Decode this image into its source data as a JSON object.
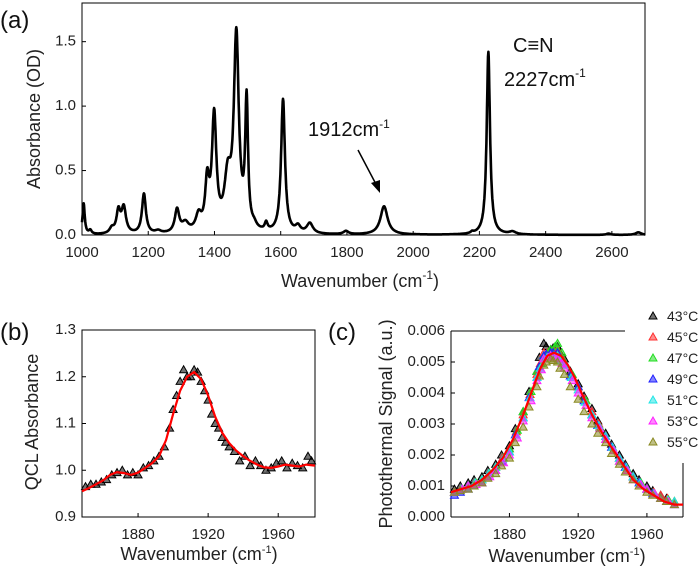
{
  "chart_data": [
    {
      "panel_label": "(a)",
      "type": "line",
      "xlabel": "Wavenumber (cm",
      "xlabel_sup": "-1",
      "xlabel_end": ")",
      "ylabel": "Absorbance (OD)",
      "xlim": [
        1000,
        2700
      ],
      "ylim": [
        0,
        1.8
      ],
      "xticks": [
        "1000",
        "1200",
        "1400",
        "1600",
        "1800",
        "2000",
        "2200",
        "2400",
        "2600"
      ],
      "yticks": [
        "0.0",
        "0.5",
        "1.0",
        "1.5"
      ],
      "grid": false,
      "color": "#000000",
      "peaks": [
        {
          "center": 1005,
          "height": 0.24,
          "width": 4
        },
        {
          "center": 1025,
          "height": 0.03,
          "width": 5
        },
        {
          "center": 1090,
          "height": 0.04,
          "width": 8
        },
        {
          "center": 1110,
          "height": 0.17,
          "width": 7
        },
        {
          "center": 1126,
          "height": 0.2,
          "width": 8
        },
        {
          "center": 1187,
          "height": 0.31,
          "width": 7
        },
        {
          "center": 1230,
          "height": 0.02,
          "width": 10
        },
        {
          "center": 1287,
          "height": 0.18,
          "width": 8
        },
        {
          "center": 1312,
          "height": 0.07,
          "width": 12
        },
        {
          "center": 1352,
          "height": 0.12,
          "width": 10
        },
        {
          "center": 1378,
          "height": 0.36,
          "width": 7
        },
        {
          "center": 1399,
          "height": 0.88,
          "width": 8
        },
        {
          "center": 1440,
          "height": 0.38,
          "width": 12
        },
        {
          "center": 1466,
          "height": 1.5,
          "width": 9
        },
        {
          "center": 1497,
          "height": 0.98,
          "width": 5
        },
        {
          "center": 1520,
          "height": 0.03,
          "width": 8
        },
        {
          "center": 1556,
          "height": 0.06,
          "width": 5
        },
        {
          "center": 1607,
          "height": 1.04,
          "width": 7
        },
        {
          "center": 1652,
          "height": 0.05,
          "width": 9
        },
        {
          "center": 1688,
          "height": 0.08,
          "width": 11
        },
        {
          "center": 1797,
          "height": 0.025,
          "width": 9
        },
        {
          "center": 1912,
          "height": 0.22,
          "width": 13
        },
        {
          "center": 2178,
          "height": 0.012,
          "width": 5
        },
        {
          "center": 2227,
          "height": 1.42,
          "width": 6
        },
        {
          "center": 2300,
          "height": 0.02,
          "width": 12
        },
        {
          "center": 2590,
          "height": 0.01,
          "width": 8
        },
        {
          "center": 2680,
          "height": 0.02,
          "width": 10
        }
      ],
      "annotations": [
        {
          "text": "1912cm",
          "sup": "-1",
          "arrow_to": [
            1912,
            0.28
          ]
        },
        {
          "text": "C≡N"
        },
        {
          "text": "2227cm",
          "sup": "-1"
        }
      ]
    },
    {
      "panel_label": "(b)",
      "type": "scatter",
      "xlabel": "Wavenumber (cm",
      "xlabel_sup": "-1",
      "xlabel_end": ")",
      "ylabel": "QCL Absorbance",
      "xlim": [
        1848,
        1981
      ],
      "ylim": [
        0.9,
        1.3
      ],
      "xticks": [
        "1880",
        "1920",
        "1960"
      ],
      "yticks": [
        "0.9",
        "1.0",
        "1.1",
        "1.2",
        "1.3"
      ],
      "grid": false,
      "data": {
        "color": "#000000",
        "marker": "triangle",
        "x": [
          1850,
          1853,
          1856,
          1859,
          1862,
          1865,
          1868,
          1871,
          1874,
          1877,
          1880,
          1883,
          1886,
          1889,
          1892,
          1895,
          1898,
          1900,
          1902,
          1904,
          1906,
          1908,
          1910,
          1912,
          1914,
          1916,
          1918,
          1920,
          1922,
          1924,
          1926,
          1928,
          1930,
          1932,
          1935,
          1938,
          1941,
          1944,
          1947,
          1950,
          1953,
          1956,
          1959,
          1962,
          1965,
          1968,
          1971,
          1974,
          1977,
          1979
        ],
        "y": [
          0.965,
          0.97,
          0.97,
          0.975,
          0.98,
          0.99,
          0.995,
          1.0,
          0.99,
          0.995,
          0.99,
          1.005,
          1.01,
          1.02,
          1.03,
          1.05,
          1.09,
          1.13,
          1.16,
          1.19,
          1.215,
          1.2,
          1.2,
          1.215,
          1.21,
          1.19,
          1.17,
          1.15,
          1.12,
          1.1,
          1.09,
          1.07,
          1.06,
          1.05,
          1.04,
          1.02,
          1.03,
          1.01,
          1.02,
          1.01,
          1.0,
          1.005,
          1.015,
          1.02,
          1.005,
          1.015,
          1.01,
          1.005,
          1.03,
          1.02
        ]
      },
      "fit": {
        "color": "#ff0000",
        "x": [
          1848,
          1852,
          1856,
          1860,
          1864,
          1868,
          1872,
          1876,
          1880,
          1884,
          1888,
          1892,
          1896,
          1900,
          1904,
          1908,
          1912,
          1916,
          1920,
          1924,
          1928,
          1932,
          1936,
          1940,
          1944,
          1948,
          1952,
          1956,
          1960,
          1964,
          1968,
          1972,
          1976,
          1981
        ],
        "y": [
          0.955,
          0.962,
          0.97,
          0.978,
          0.99,
          0.996,
          0.994,
          0.99,
          0.995,
          1.005,
          1.015,
          1.03,
          1.065,
          1.12,
          1.17,
          1.2,
          1.21,
          1.195,
          1.16,
          1.115,
          1.08,
          1.058,
          1.042,
          1.03,
          1.02,
          1.012,
          1.006,
          1.005,
          1.008,
          1.012,
          1.01,
          1.008,
          1.012,
          1.01
        ]
      }
    },
    {
      "panel_label": "(c)",
      "type": "scatter",
      "xlabel": "Wavenumber (cm",
      "xlabel_sup": "-1",
      "xlabel_end": ")",
      "ylabel": "Photothermal Signal (a.u.)",
      "xlim": [
        1846,
        1981
      ],
      "ylim": [
        0,
        0.006
      ],
      "xticks": [
        "1880",
        "1920",
        "1960"
      ],
      "yticks": [
        "0.000",
        "0.001",
        "0.002",
        "0.003",
        "0.004",
        "0.005",
        "0.006"
      ],
      "grid": false,
      "legend_position": "right",
      "x": [
        1848,
        1856,
        1864,
        1872,
        1880,
        1888,
        1896,
        1900,
        1904,
        1908,
        1912,
        1920,
        1928,
        1936,
        1944,
        1952,
        1960,
        1968,
        1976
      ],
      "series": [
        {
          "name": "43°C",
          "color": "#000000",
          "y": [
            0.0009,
            0.0011,
            0.0013,
            0.0017,
            0.0023,
            0.0034,
            0.0047,
            0.0056,
            0.0054,
            0.0055,
            0.0051,
            0.0043,
            0.0035,
            0.0027,
            0.002,
            0.0014,
            0.001,
            0.0007,
            0.0005
          ]
        },
        {
          "name": "45°C",
          "color": "#ff3030",
          "y": [
            0.0008,
            0.001,
            0.0012,
            0.0016,
            0.0022,
            0.0033,
            0.0046,
            0.0053,
            0.0053,
            0.0054,
            0.005,
            0.0042,
            0.0034,
            0.0026,
            0.0019,
            0.0013,
            0.0009,
            0.0007,
            0.0005
          ]
        },
        {
          "name": "47°C",
          "color": "#22dd22",
          "y": [
            0.0008,
            0.001,
            0.0012,
            0.0016,
            0.0022,
            0.0034,
            0.0047,
            0.0052,
            0.0054,
            0.0056,
            0.005,
            0.0042,
            0.0033,
            0.0025,
            0.0018,
            0.0013,
            0.0009,
            0.0006,
            0.0005
          ]
        },
        {
          "name": "49°C",
          "color": "#2020ff",
          "y": [
            0.0007,
            0.0009,
            0.0011,
            0.0015,
            0.0021,
            0.0032,
            0.0045,
            0.0052,
            0.0053,
            0.0053,
            0.0049,
            0.0042,
            0.0033,
            0.0026,
            0.0019,
            0.0013,
            0.0009,
            0.0006,
            0.0004
          ]
        },
        {
          "name": "51°C",
          "color": "#22e5e5",
          "y": [
            0.0008,
            0.001,
            0.0012,
            0.0016,
            0.0021,
            0.0032,
            0.0045,
            0.0051,
            0.0052,
            0.0052,
            0.0049,
            0.0041,
            0.0033,
            0.0026,
            0.0019,
            0.0013,
            0.0009,
            0.0006,
            0.0005
          ]
        },
        {
          "name": "53°C",
          "color": "#ff22ff",
          "y": [
            0.0008,
            0.001,
            0.0011,
            0.0015,
            0.002,
            0.0031,
            0.0044,
            0.0051,
            0.0052,
            0.0051,
            0.0048,
            0.004,
            0.0032,
            0.0025,
            0.0018,
            0.0012,
            0.0009,
            0.0006,
            0.0004
          ]
        },
        {
          "name": "55°C",
          "color": "#8a8a22",
          "y": [
            0.0008,
            0.0009,
            0.0011,
            0.0014,
            0.0019,
            0.0029,
            0.0042,
            0.0049,
            0.0051,
            0.005,
            0.0046,
            0.0038,
            0.003,
            0.0024,
            0.0017,
            0.0012,
            0.0008,
            0.0006,
            0.0004
          ]
        }
      ],
      "fit": {
        "color": "#ff0000",
        "x": [
          1846,
          1852,
          1858,
          1864,
          1870,
          1876,
          1882,
          1888,
          1894,
          1898,
          1902,
          1906,
          1910,
          1914,
          1918,
          1922,
          1928,
          1934,
          1940,
          1946,
          1952,
          1958,
          1964,
          1970,
          1976,
          1981
        ],
        "y": [
          0.0008,
          0.0009,
          0.001,
          0.0012,
          0.0015,
          0.0019,
          0.0025,
          0.0033,
          0.0042,
          0.0048,
          0.0052,
          0.0053,
          0.0052,
          0.0049,
          0.0045,
          0.004,
          0.0033,
          0.0027,
          0.0022,
          0.0017,
          0.0012,
          0.0009,
          0.0007,
          0.0005,
          0.0004,
          0.0004
        ]
      }
    }
  ]
}
